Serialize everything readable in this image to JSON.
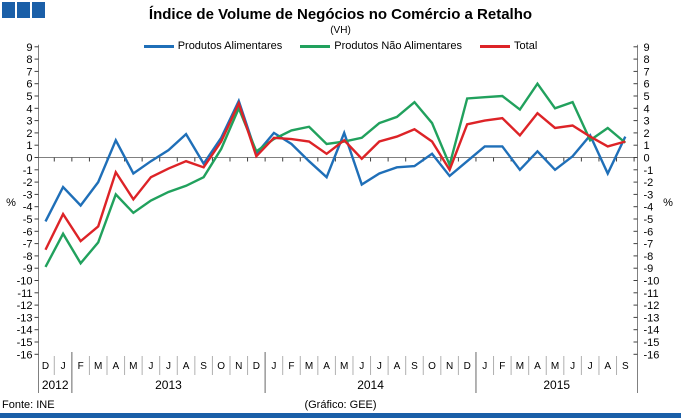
{
  "title": "Índice de Volume de Negócios no Comércio a Retalho",
  "subtitle": "(VH)",
  "footer": {
    "source": "Fonte: INE",
    "credit": "(Gráfico: GEE)"
  },
  "axis": {
    "left_unit": "%",
    "right_unit": "%"
  },
  "logo": {
    "color": "#1a5fa8"
  },
  "colors": {
    "accent_bar": "#1a5fa8",
    "axis_gray": "#808080",
    "separator_light": "#b0b0b0"
  },
  "chart_data": {
    "type": "line",
    "x_labels": [
      "D",
      "J",
      "F",
      "M",
      "A",
      "M",
      "J",
      "J",
      "A",
      "S",
      "O",
      "N",
      "D",
      "J",
      "F",
      "M",
      "A",
      "M",
      "J",
      "J",
      "A",
      "S",
      "O",
      "N",
      "D",
      "J",
      "F",
      "M",
      "A",
      "M",
      "J",
      "J",
      "A",
      "S"
    ],
    "year_groups": [
      {
        "label": "2012",
        "from": 0,
        "to": 1
      },
      {
        "label": "2013",
        "from": 2,
        "to": 12
      },
      {
        "label": "2014",
        "from": 13,
        "to": 24
      },
      {
        "label": "2015",
        "from": 25,
        "to": 33
      }
    ],
    "ylim": [
      -16,
      9
    ],
    "ytick_step": 1,
    "grid": "zero-line-only",
    "legend_position": "top",
    "series": [
      {
        "name": "Produtos Alimentares",
        "color": "#1f6fb8",
        "values": [
          -5.2,
          -2.4,
          -3.9,
          -2.0,
          1.4,
          -1.3,
          -0.3,
          0.6,
          1.9,
          -0.5,
          1.6,
          4.6,
          0.3,
          2.0,
          1.1,
          -0.3,
          -1.6,
          2.0,
          -2.2,
          -1.3,
          -0.8,
          -0.7,
          0.3,
          -1.5,
          -0.3,
          0.9,
          0.9,
          -1.0,
          0.5,
          -1.0,
          0.1,
          1.8,
          -1.3,
          1.7
        ]
      },
      {
        "name": "Produtos Não Alimentares",
        "color": "#21a15d",
        "values": [
          -8.9,
          -6.2,
          -8.6,
          -6.9,
          -3.0,
          -4.5,
          -3.5,
          -2.8,
          -2.3,
          -1.6,
          0.7,
          4.0,
          0.5,
          1.5,
          2.2,
          2.5,
          1.1,
          1.3,
          1.6,
          2.8,
          3.3,
          4.5,
          2.8,
          -0.6,
          4.8,
          4.9,
          5.0,
          3.9,
          6.0,
          4.0,
          4.5,
          1.4,
          2.4,
          1.2
        ]
      },
      {
        "name": "Total",
        "color": "#dd2327",
        "values": [
          -7.5,
          -4.6,
          -6.8,
          -5.6,
          -1.2,
          -3.4,
          -1.6,
          -0.9,
          -0.3,
          -0.8,
          1.3,
          4.4,
          0.1,
          1.6,
          1.5,
          1.3,
          0.3,
          1.4,
          -0.1,
          1.3,
          1.7,
          2.3,
          1.3,
          -1.0,
          2.7,
          3.0,
          3.2,
          1.8,
          3.6,
          2.4,
          2.6,
          1.7,
          0.9,
          1.3
        ]
      }
    ]
  }
}
